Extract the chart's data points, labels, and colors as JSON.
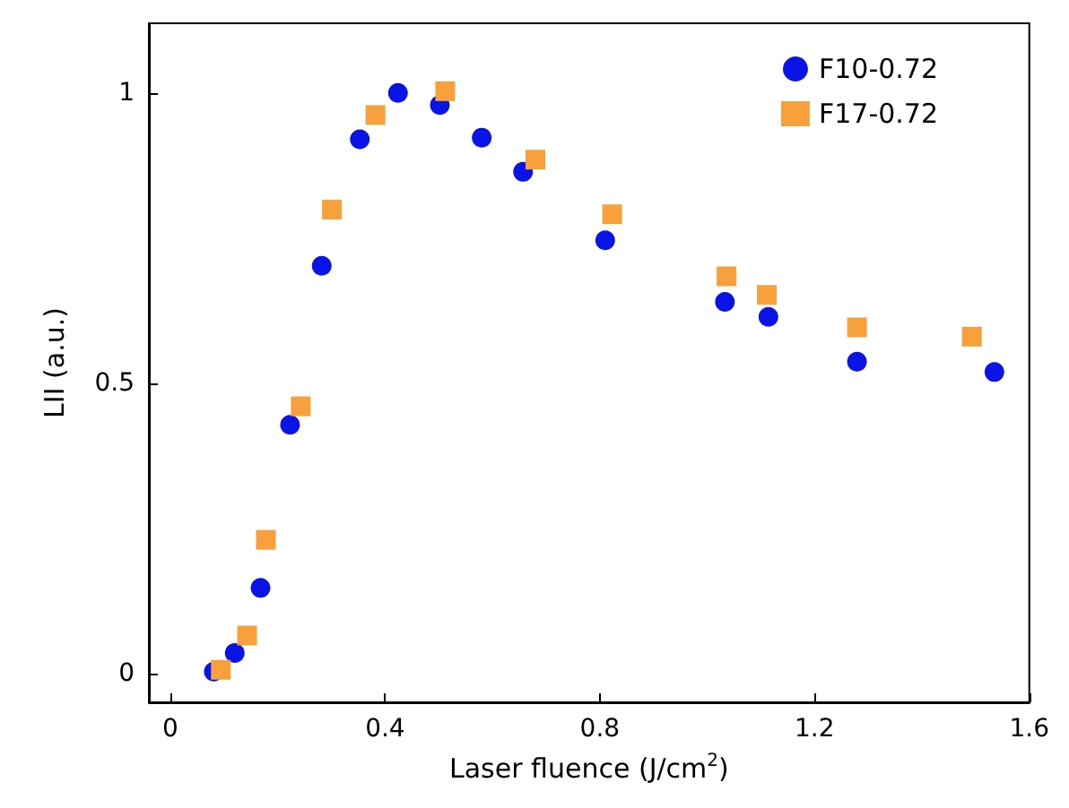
{
  "chart_data": {
    "type": "scatter",
    "xlabel": "Laser fluence (J/cm$^{2}$)",
    "ylabel": "LII (a.u.)",
    "xlim": [
      -0.04,
      1.6
    ],
    "xticks": [
      0,
      0.4,
      0.8,
      1.2,
      1.6
    ],
    "ylim": [
      -0.05,
      1.12
    ],
    "yticks": [
      0,
      0.5,
      1
    ],
    "grid": false,
    "legend": "top right",
    "series": [
      {
        "name": "F10-0.72",
        "color": "#0a14e6",
        "marker": "circle",
        "x": [
          0.081,
          0.12,
          0.168,
          0.223,
          0.282,
          0.353,
          0.424,
          0.502,
          0.58,
          0.657,
          0.81,
          1.033,
          1.114,
          1.279,
          1.535
        ],
        "values": [
          0.003,
          0.035,
          0.147,
          0.428,
          0.702,
          0.92,
          1.0,
          0.979,
          0.923,
          0.864,
          0.746,
          0.64,
          0.614,
          0.537,
          0.519
        ]
      },
      {
        "name": "F17-0.72",
        "color": "#f7a03c",
        "marker": "square",
        "x": [
          0.094,
          0.143,
          0.178,
          0.243,
          0.301,
          0.382,
          0.512,
          0.68,
          0.823,
          1.036,
          1.111,
          1.279,
          1.493
        ],
        "values": [
          0.006,
          0.065,
          0.23,
          0.46,
          0.799,
          0.962,
          1.003,
          0.885,
          0.791,
          0.684,
          0.652,
          0.596,
          0.58
        ]
      }
    ]
  }
}
